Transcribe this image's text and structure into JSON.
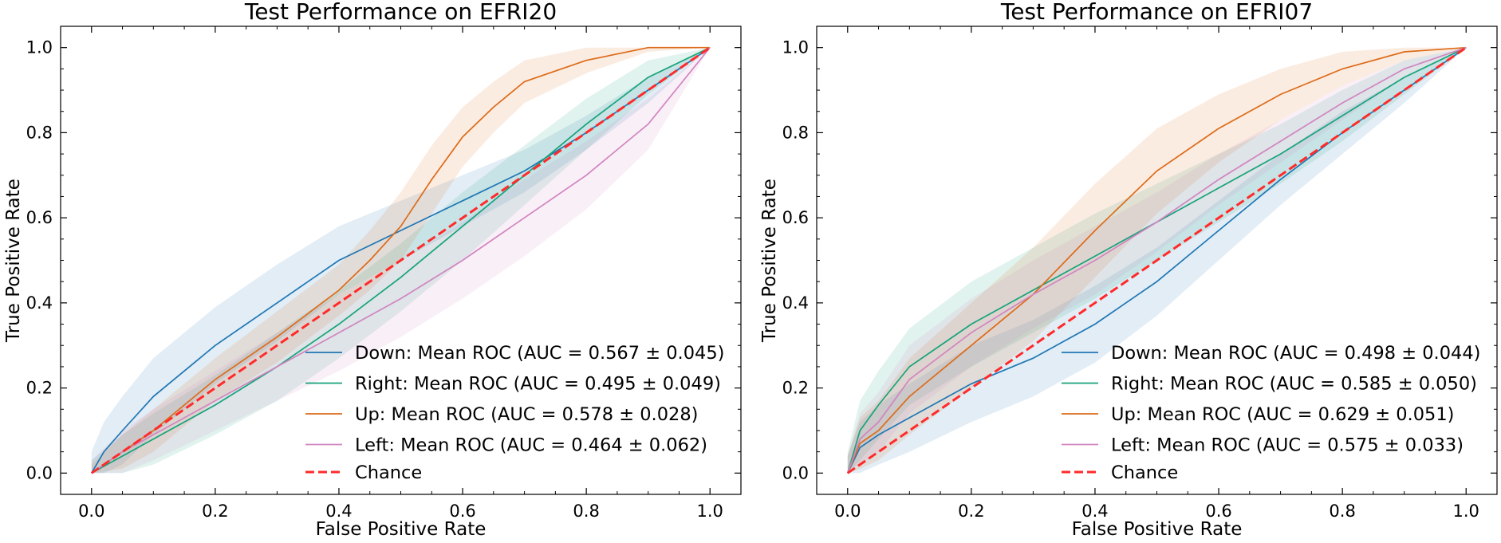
{
  "chart_data": [
    {
      "type": "line",
      "title": "Test Performance on EFRI20",
      "xlabel": "False Positive Rate",
      "ylabel": "True Positive Rate",
      "xlim": [
        -0.05,
        1.05
      ],
      "ylim": [
        -0.05,
        1.05
      ],
      "xticks": [
        "0.0",
        "0.2",
        "0.4",
        "0.6",
        "0.8",
        "1.0"
      ],
      "yticks": [
        "0.0",
        "0.2",
        "0.4",
        "0.6",
        "0.8",
        "1.0"
      ],
      "legend_position": "lower-right",
      "series": [
        {
          "name": "Down:  Mean ROC (AUC = 0.567 ± 0.045)",
          "color": "#1f77b4",
          "x": [
            0,
            0.02,
            0.05,
            0.1,
            0.2,
            0.3,
            0.4,
            0.5,
            0.6,
            0.7,
            0.8,
            0.9,
            1.0
          ],
          "y": [
            0,
            0.05,
            0.1,
            0.18,
            0.3,
            0.4,
            0.5,
            0.57,
            0.64,
            0.71,
            0.8,
            0.9,
            1.0
          ],
          "band": [
            0.05,
            0.07,
            0.08,
            0.09,
            0.09,
            0.09,
            0.08,
            0.07,
            0.06,
            0.05,
            0.04,
            0.03,
            0
          ]
        },
        {
          "name": "Right:  Mean ROC (AUC = 0.495 ± 0.049)",
          "color": "#17a37a",
          "x": [
            0,
            0.05,
            0.1,
            0.2,
            0.3,
            0.4,
            0.5,
            0.6,
            0.7,
            0.8,
            0.9,
            1.0
          ],
          "y": [
            0,
            0.04,
            0.08,
            0.16,
            0.25,
            0.35,
            0.46,
            0.58,
            0.7,
            0.82,
            0.93,
            1.0
          ],
          "band": [
            0.03,
            0.05,
            0.06,
            0.07,
            0.08,
            0.08,
            0.08,
            0.08,
            0.07,
            0.06,
            0.04,
            0
          ]
        },
        {
          "name": "Up:  Mean ROC (AUC = 0.578 ± 0.028)",
          "color": "#dd6b1a",
          "x": [
            0,
            0.05,
            0.1,
            0.2,
            0.3,
            0.4,
            0.45,
            0.5,
            0.55,
            0.6,
            0.65,
            0.7,
            0.8,
            0.9,
            1.0
          ],
          "y": [
            0,
            0.05,
            0.1,
            0.22,
            0.32,
            0.43,
            0.5,
            0.58,
            0.69,
            0.79,
            0.86,
            0.92,
            0.97,
            1.0,
            1.0
          ],
          "band": [
            0.02,
            0.04,
            0.05,
            0.05,
            0.06,
            0.06,
            0.07,
            0.08,
            0.08,
            0.07,
            0.06,
            0.05,
            0.03,
            0.01,
            0
          ]
        },
        {
          "name": "Left:  Mean ROC (AUC = 0.464 ± 0.062)",
          "color": "#d185c0",
          "x": [
            0,
            0.05,
            0.1,
            0.2,
            0.3,
            0.4,
            0.5,
            0.6,
            0.7,
            0.8,
            0.9,
            1.0
          ],
          "y": [
            0,
            0.05,
            0.09,
            0.17,
            0.25,
            0.33,
            0.41,
            0.5,
            0.6,
            0.7,
            0.82,
            1.0
          ],
          "band": [
            0.03,
            0.05,
            0.06,
            0.07,
            0.08,
            0.09,
            0.09,
            0.09,
            0.09,
            0.08,
            0.06,
            0
          ]
        },
        {
          "name": "Chance",
          "color": "#ff2a2a",
          "dashed": true,
          "x": [
            0,
            1
          ],
          "y": [
            0,
            1
          ]
        }
      ]
    },
    {
      "type": "line",
      "title": "Test Performance on EFRI07",
      "xlabel": "False Positive Rate",
      "ylabel": "True Positive Rate",
      "xlim": [
        -0.05,
        1.05
      ],
      "ylim": [
        -0.05,
        1.05
      ],
      "xticks": [
        "0.0",
        "0.2",
        "0.4",
        "0.6",
        "0.8",
        "1.0"
      ],
      "yticks": [
        "0.0",
        "0.2",
        "0.4",
        "0.6",
        "0.8",
        "1.0"
      ],
      "legend_position": "lower-right",
      "series": [
        {
          "name": "Down:  Mean ROC (AUC = 0.498 ± 0.044)",
          "color": "#1f77b4",
          "x": [
            0,
            0.02,
            0.05,
            0.1,
            0.2,
            0.3,
            0.4,
            0.5,
            0.6,
            0.7,
            0.8,
            0.9,
            1.0
          ],
          "y": [
            0,
            0.06,
            0.09,
            0.13,
            0.21,
            0.27,
            0.35,
            0.45,
            0.57,
            0.69,
            0.8,
            0.9,
            1.0
          ],
          "band": [
            0.04,
            0.06,
            0.07,
            0.08,
            0.09,
            0.09,
            0.09,
            0.08,
            0.07,
            0.06,
            0.05,
            0.03,
            0
          ]
        },
        {
          "name": "Right:  Mean ROC (AUC = 0.585 ± 0.050)",
          "color": "#17a37a",
          "x": [
            0,
            0.02,
            0.05,
            0.1,
            0.2,
            0.3,
            0.4,
            0.5,
            0.6,
            0.7,
            0.8,
            0.9,
            1.0
          ],
          "y": [
            0,
            0.1,
            0.16,
            0.25,
            0.35,
            0.43,
            0.51,
            0.59,
            0.67,
            0.75,
            0.84,
            0.93,
            1.0
          ],
          "band": [
            0.05,
            0.07,
            0.08,
            0.09,
            0.1,
            0.1,
            0.1,
            0.09,
            0.08,
            0.07,
            0.06,
            0.04,
            0
          ]
        },
        {
          "name": "Up:  Mean ROC (AUC = 0.629 ± 0.051)",
          "color": "#dd6b1a",
          "x": [
            0,
            0.02,
            0.05,
            0.1,
            0.2,
            0.3,
            0.4,
            0.5,
            0.6,
            0.7,
            0.8,
            0.9,
            1.0
          ],
          "y": [
            0,
            0.07,
            0.1,
            0.18,
            0.3,
            0.42,
            0.57,
            0.71,
            0.81,
            0.89,
            0.95,
            0.99,
            1.0
          ],
          "band": [
            0.04,
            0.06,
            0.07,
            0.09,
            0.1,
            0.11,
            0.11,
            0.1,
            0.08,
            0.06,
            0.04,
            0.02,
            0
          ]
        },
        {
          "name": "Left:  Mean ROC (AUC = 0.575 ± 0.033)",
          "color": "#d185c0",
          "x": [
            0,
            0.02,
            0.05,
            0.1,
            0.2,
            0.3,
            0.4,
            0.5,
            0.6,
            0.7,
            0.8,
            0.9,
            1.0
          ],
          "y": [
            0,
            0.08,
            0.12,
            0.22,
            0.33,
            0.42,
            0.5,
            0.59,
            0.69,
            0.78,
            0.87,
            0.95,
            1.0
          ],
          "band": [
            0.04,
            0.06,
            0.07,
            0.08,
            0.08,
            0.08,
            0.08,
            0.07,
            0.06,
            0.05,
            0.04,
            0.02,
            0
          ]
        },
        {
          "name": "Chance",
          "color": "#ff2a2a",
          "dashed": true,
          "x": [
            0,
            1
          ],
          "y": [
            0,
            1
          ]
        }
      ]
    }
  ]
}
